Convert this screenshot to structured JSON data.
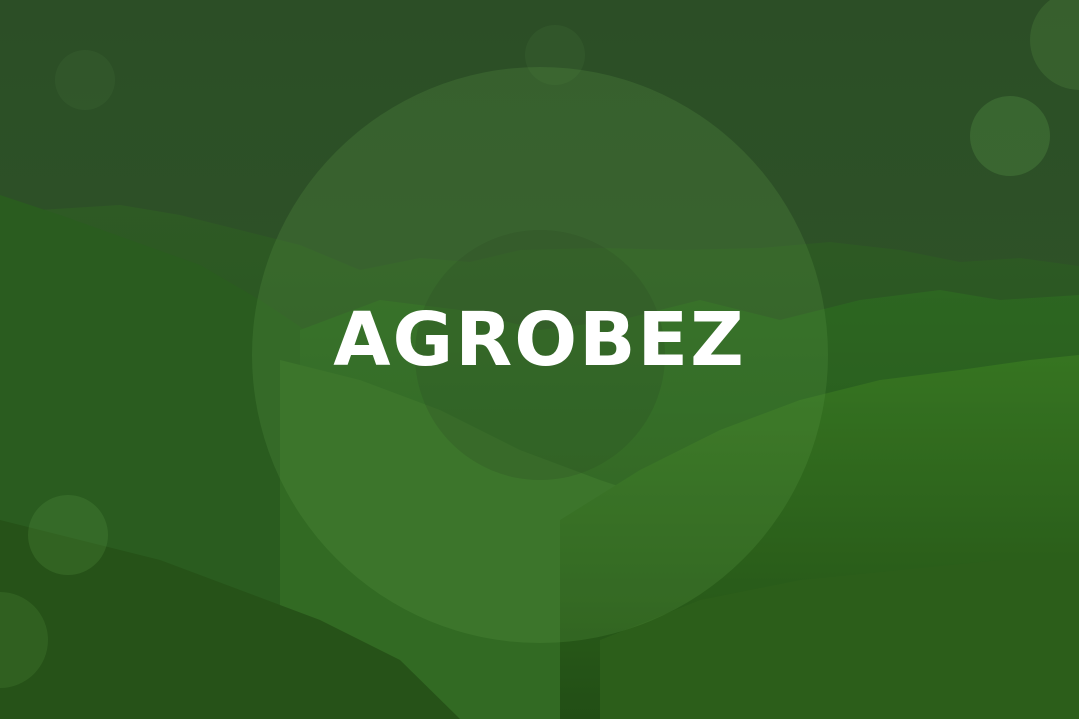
{
  "hero": {
    "title": "AGROBEZ",
    "icon": "mountain-landscape",
    "colors": {
      "overlay": "#2a5a1f",
      "sky": "#2f4b2b",
      "text": "#ffffff"
    }
  }
}
